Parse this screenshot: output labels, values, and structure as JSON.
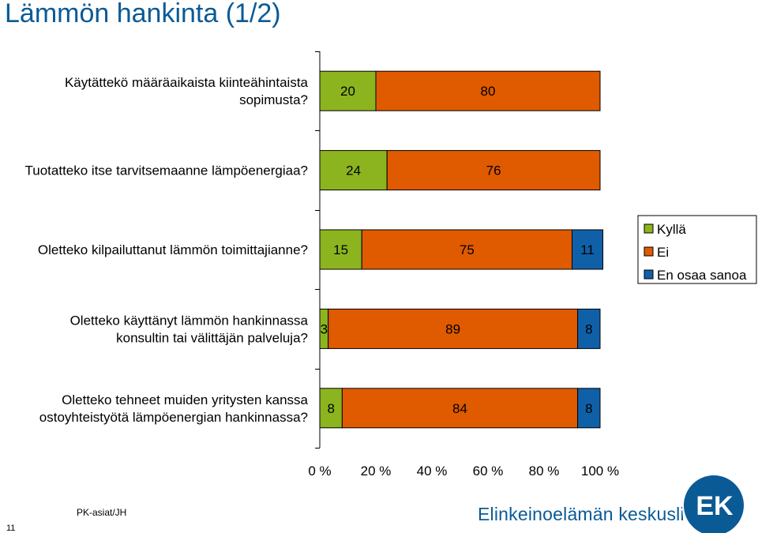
{
  "title": "Lämmön hankinta (1/2)",
  "footer": {
    "text": "PK-asiat/JH",
    "page_number": "11"
  },
  "brand": {
    "name": "Elinkeinoelämän keskusliitto",
    "logo_text": "EK"
  },
  "colors": {
    "title": "#0a5a96",
    "kylla": "#8cb41e",
    "ei": "#e05a00",
    "en_osaa_sanoa": "#1060a8",
    "brand": "#0a5a96"
  },
  "chart_data": {
    "type": "bar",
    "orientation": "horizontal",
    "stacked": "percent",
    "categories": [
      [
        "Käytättekö määräaikaista kiinteähintaista",
        "sopimusta?"
      ],
      [
        "Tuotatteko itse tarvitsemaanne lämpöenergiaa?"
      ],
      [
        "Oletteko kilpailuttanut lämmön toimittajianne?"
      ],
      [
        "Oletteko käyttänyt lämmön hankinnassa",
        "konsultin tai välittäjän palveluja?"
      ],
      [
        "Oletteko tehneet muiden yritysten kanssa",
        "ostoyhteistyötä lämpöenergian hankinnassa?"
      ]
    ],
    "series": [
      {
        "name": "Kyllä",
        "values": [
          20,
          24,
          15,
          3,
          8
        ]
      },
      {
        "name": "Ei",
        "values": [
          80,
          76,
          75,
          89,
          84
        ]
      },
      {
        "name": "En osaa sanoa",
        "values": [
          0,
          0,
          11,
          8,
          8
        ]
      }
    ],
    "data_labels": [
      [
        "20",
        "24",
        "15",
        "3",
        "8"
      ],
      [
        "80",
        "76",
        "75",
        "89",
        "84"
      ],
      [
        "",
        "",
        "11",
        "8",
        "8"
      ]
    ],
    "x_ticks": [
      "0 %",
      "20 %",
      "40 %",
      "60 %",
      "80 %",
      "100 %"
    ],
    "xlim": [
      0,
      100
    ],
    "grid": false,
    "legend": "right"
  }
}
